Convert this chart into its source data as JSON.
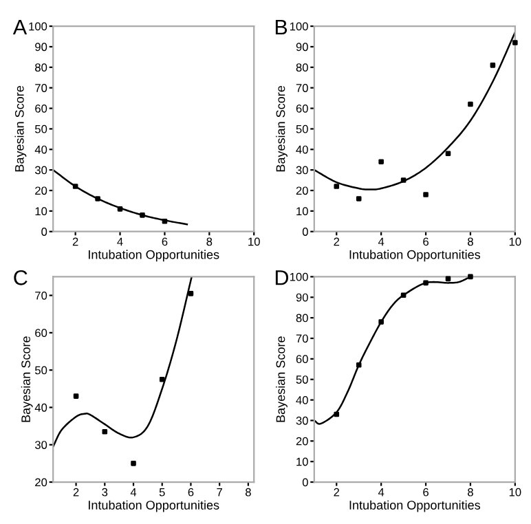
{
  "chart_data": [
    {
      "type": "scatter",
      "title": "A",
      "xlabel": "Intubation Opportunities",
      "ylabel": "Bayesian Score",
      "xlim": [
        1,
        10
      ],
      "ylim": [
        0,
        100
      ],
      "xticks": [
        2,
        4,
        6,
        8,
        10
      ],
      "yticks": [
        0,
        10,
        20,
        30,
        40,
        50,
        60,
        70,
        80,
        90,
        100
      ],
      "grid": false,
      "series": [
        {
          "marker": "square",
          "color": "#000000",
          "x": [
            2,
            3,
            4,
            5,
            6
          ],
          "values": [
            22,
            16,
            11,
            8,
            5
          ]
        },
        {
          "type": "line",
          "marker": "none",
          "color": "#000000",
          "x": [
            1,
            2,
            3,
            4,
            5,
            6,
            7
          ],
          "values": [
            30,
            22,
            16,
            11.5,
            8,
            5.5,
            3.5
          ]
        }
      ]
    },
    {
      "type": "scatter",
      "title": "B",
      "xlabel": "Intubation Opportunities",
      "ylabel": "Bayesian Score",
      "xlim": [
        1,
        10
      ],
      "ylim": [
        0,
        100
      ],
      "xticks": [
        2,
        4,
        6,
        8,
        10
      ],
      "yticks": [
        0,
        10,
        20,
        30,
        40,
        50,
        60,
        70,
        80,
        90,
        100
      ],
      "grid": false,
      "series": [
        {
          "marker": "square",
          "color": "#000000",
          "x": [
            2,
            3,
            4,
            5,
            6,
            7,
            8,
            9,
            10
          ],
          "values": [
            22,
            16,
            34,
            25,
            18,
            38,
            62,
            81,
            92
          ]
        },
        {
          "type": "line",
          "marker": "none",
          "color": "#000000",
          "x": [
            1,
            2,
            3,
            3.5,
            4,
            5,
            6,
            7,
            8,
            9,
            10
          ],
          "values": [
            30,
            24,
            21,
            20.5,
            21,
            24.5,
            31,
            41,
            54,
            73,
            97
          ]
        }
      ]
    },
    {
      "type": "scatter",
      "title": "C",
      "xlabel": "Intubation Opportunities",
      "ylabel": "Bayesian Score",
      "xlim": [
        1.2,
        8.2
      ],
      "ylim": [
        20,
        75
      ],
      "xticks": [
        2,
        3,
        4,
        5,
        6,
        7,
        8
      ],
      "yticks": [
        20,
        30,
        40,
        50,
        60,
        70
      ],
      "grid": false,
      "series": [
        {
          "marker": "square",
          "color": "#000000",
          "x": [
            2,
            3,
            4,
            5,
            6
          ],
          "values": [
            43,
            33.5,
            25,
            47.5,
            70.5
          ]
        },
        {
          "type": "line",
          "marker": "none",
          "color": "#000000",
          "x": [
            1.2,
            1.5,
            2,
            2.3,
            2.5,
            3,
            3.5,
            4,
            4.5,
            5,
            5.5,
            6.03
          ],
          "values": [
            29.5,
            34,
            37.5,
            38.3,
            38,
            35.5,
            33,
            32,
            35,
            45,
            58,
            75
          ]
        }
      ]
    },
    {
      "type": "scatter",
      "title": "D",
      "xlabel": "Intubation Opportunities",
      "ylabel": "Bayesian Score",
      "xlim": [
        1,
        10
      ],
      "ylim": [
        0,
        100
      ],
      "xticks": [
        2,
        4,
        6,
        8,
        10
      ],
      "yticks": [
        0,
        10,
        20,
        30,
        40,
        50,
        60,
        70,
        80,
        90,
        100
      ],
      "grid": false,
      "series": [
        {
          "marker": "square",
          "color": "#000000",
          "x": [
            2,
            3,
            4,
            5,
            6,
            7,
            8
          ],
          "values": [
            33,
            57,
            78,
            91,
            97,
            99,
            100
          ]
        },
        {
          "type": "line",
          "marker": "none",
          "color": "#000000",
          "x": [
            1,
            1.3,
            2,
            2.5,
            3,
            3.5,
            4,
            4.5,
            5,
            6,
            7,
            7.5,
            8
          ],
          "values": [
            30,
            28.5,
            34,
            44,
            57,
            68,
            78,
            86,
            91,
            97,
            97,
            97.5,
            100
          ]
        }
      ]
    }
  ]
}
